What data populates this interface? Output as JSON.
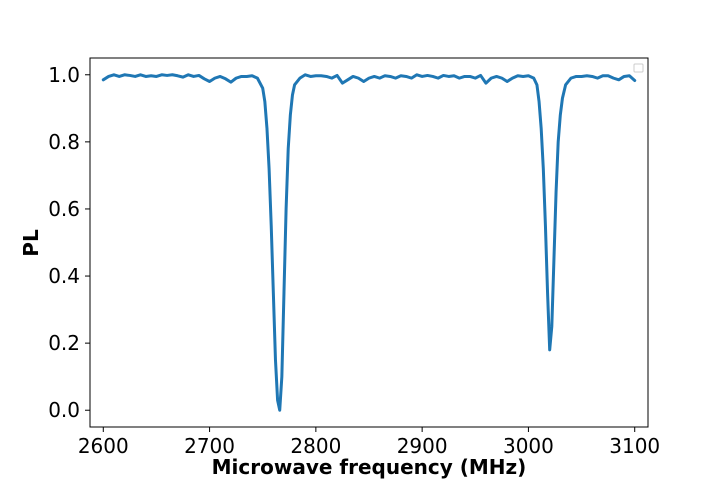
{
  "chart_data": {
    "type": "line",
    "title": "",
    "xlabel": "Microwave frequency (MHz)",
    "ylabel": "PL",
    "xlim": [
      2587.5,
      3112.5
    ],
    "ylim": [
      -0.05,
      1.05
    ],
    "xticks": [
      2600,
      2700,
      2800,
      2900,
      3000,
      3100
    ],
    "yticks": [
      0.0,
      0.2,
      0.4,
      0.6,
      0.8,
      1.0
    ],
    "xtick_labels": [
      "2600",
      "2700",
      "2800",
      "2900",
      "3000",
      "3100"
    ],
    "ytick_labels": [
      "0.0",
      "0.2",
      "0.4",
      "0.6",
      "0.8",
      "1.0"
    ],
    "grid": false,
    "legend": {
      "placement": "upper right",
      "entries": []
    },
    "series": [
      {
        "color": "#1f77b4",
        "x": [
          2600,
          2605,
          2610,
          2615,
          2620,
          2625,
          2630,
          2635,
          2640,
          2645,
          2650,
          2655,
          2660,
          2665,
          2670,
          2675,
          2680,
          2685,
          2690,
          2695,
          2700,
          2705,
          2710,
          2715,
          2720,
          2725,
          2730,
          2735,
          2740,
          2745,
          2750,
          2752,
          2754,
          2756,
          2758,
          2760,
          2762,
          2764,
          2766,
          2768,
          2770,
          2772,
          2774,
          2776,
          2778,
          2780,
          2785,
          2790,
          2795,
          2800,
          2805,
          2810,
          2815,
          2820,
          2825,
          2830,
          2835,
          2840,
          2845,
          2850,
          2855,
          2860,
          2865,
          2870,
          2875,
          2880,
          2885,
          2890,
          2895,
          2900,
          2905,
          2910,
          2915,
          2920,
          2925,
          2930,
          2935,
          2940,
          2945,
          2950,
          2955,
          2960,
          2965,
          2970,
          2975,
          2980,
          2985,
          2990,
          2995,
          3000,
          3005,
          3008,
          3010,
          3012,
          3014,
          3016,
          3018,
          3020,
          3022,
          3024,
          3026,
          3028,
          3030,
          3032,
          3035,
          3040,
          3045,
          3050,
          3055,
          3060,
          3065,
          3070,
          3075,
          3080,
          3085,
          3090,
          3095,
          3100
        ],
        "y": [
          0.985,
          0.995,
          1.0,
          0.995,
          1.0,
          0.998,
          0.995,
          1.0,
          0.995,
          0.997,
          0.995,
          1.0,
          0.998,
          1.0,
          0.997,
          0.993,
          1.0,
          0.995,
          0.998,
          0.988,
          0.98,
          0.99,
          0.995,
          0.988,
          0.978,
          0.99,
          0.995,
          0.995,
          0.997,
          0.99,
          0.96,
          0.92,
          0.84,
          0.72,
          0.55,
          0.35,
          0.15,
          0.03,
          0.0,
          0.1,
          0.35,
          0.6,
          0.78,
          0.88,
          0.94,
          0.97,
          0.99,
          1.0,
          0.995,
          0.997,
          0.997,
          0.995,
          0.99,
          0.998,
          0.975,
          0.985,
          0.995,
          0.99,
          0.98,
          0.99,
          0.995,
          0.99,
          0.997,
          0.995,
          0.99,
          0.997,
          0.995,
          0.99,
          1.0,
          0.995,
          0.998,
          0.995,
          0.99,
          0.998,
          0.995,
          0.997,
          0.99,
          0.995,
          0.995,
          0.99,
          0.998,
          0.975,
          0.99,
          0.995,
          0.99,
          0.98,
          0.99,
          0.997,
          0.995,
          0.997,
          0.99,
          0.97,
          0.92,
          0.84,
          0.72,
          0.55,
          0.35,
          0.18,
          0.25,
          0.45,
          0.65,
          0.8,
          0.88,
          0.93,
          0.97,
          0.99,
          0.995,
          0.995,
          0.997,
          0.995,
          0.99,
          0.997,
          0.997,
          0.99,
          0.985,
          0.995,
          0.997,
          0.983
        ]
      }
    ]
  }
}
